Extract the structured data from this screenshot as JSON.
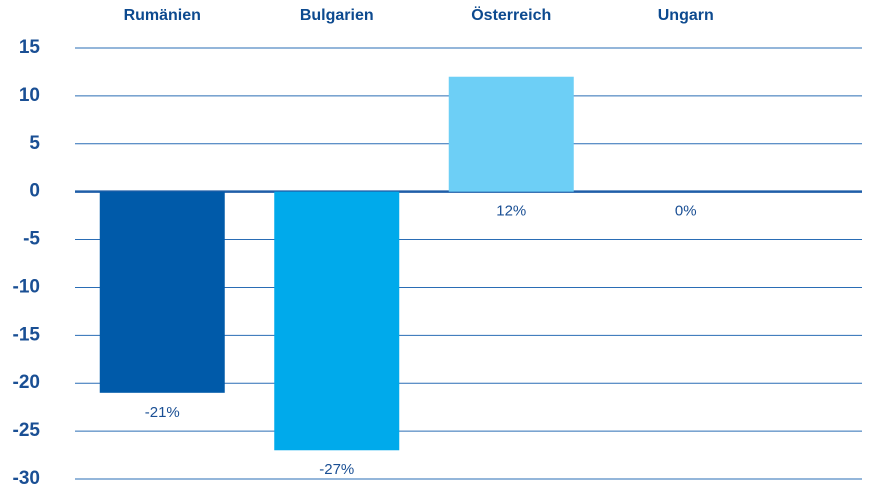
{
  "chart_data": {
    "type": "bar",
    "categories": [
      "Rumänien",
      "Bulgarien",
      "Österreich",
      "Ungarn"
    ],
    "values": [
      -21,
      -27,
      12,
      0
    ],
    "value_labels": [
      "-21%",
      "-27%",
      "12%",
      "0%"
    ],
    "colors": [
      "#005aa9",
      "#00aaeb",
      "#6dcff6",
      "#1b3b2f"
    ],
    "ylim": [
      -30,
      15
    ],
    "yticks": [
      15,
      10,
      5,
      0,
      -5,
      -10,
      -15,
      -20,
      -25,
      -30
    ],
    "grid": true
  }
}
